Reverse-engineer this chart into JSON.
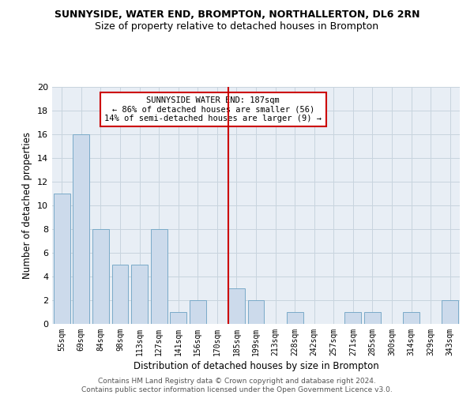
{
  "title": "SUNNYSIDE, WATER END, BROMPTON, NORTHALLERTON, DL6 2RN",
  "subtitle": "Size of property relative to detached houses in Brompton",
  "xlabel": "Distribution of detached houses by size in Brompton",
  "ylabel": "Number of detached properties",
  "categories": [
    "55sqm",
    "69sqm",
    "84sqm",
    "98sqm",
    "113sqm",
    "127sqm",
    "141sqm",
    "156sqm",
    "170sqm",
    "185sqm",
    "199sqm",
    "213sqm",
    "228sqm",
    "242sqm",
    "257sqm",
    "271sqm",
    "285sqm",
    "300sqm",
    "314sqm",
    "329sqm",
    "343sqm"
  ],
  "values": [
    11,
    16,
    8,
    5,
    5,
    8,
    1,
    2,
    0,
    3,
    2,
    0,
    1,
    0,
    0,
    1,
    1,
    0,
    1,
    0,
    2
  ],
  "bar_color": "#ccdaeb",
  "bar_edge_color": "#7aaac8",
  "highlight_index": 9,
  "highlight_line_color": "#cc0000",
  "annotation_line1": "SUNNYSIDE WATER END: 187sqm",
  "annotation_line2": "← 86% of detached houses are smaller (56)",
  "annotation_line3": "14% of semi-detached houses are larger (9) →",
  "annotation_box_facecolor": "#ffffff",
  "annotation_box_edgecolor": "#cc0000",
  "ylim_max": 20,
  "yticks": [
    0,
    2,
    4,
    6,
    8,
    10,
    12,
    14,
    16,
    18,
    20
  ],
  "grid_color": "#c8d4de",
  "plot_bgcolor": "#e8eef5",
  "footer": "Contains HM Land Registry data © Crown copyright and database right 2024.\nContains public sector information licensed under the Open Government Licence v3.0."
}
